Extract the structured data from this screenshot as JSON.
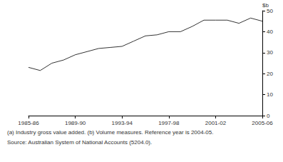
{
  "chart_data": {
    "type": "line",
    "y_label": "$b",
    "categories": [
      "1985-86",
      null,
      null,
      null,
      "1989-90",
      null,
      null,
      null,
      "1993-94",
      null,
      null,
      null,
      "1997-98",
      null,
      null,
      null,
      "2001-02",
      null,
      null,
      null,
      "2005-06"
    ],
    "values": [
      23,
      21.5,
      25,
      26.5,
      29,
      30.5,
      32,
      32.5,
      33,
      35.5,
      38,
      38.5,
      40,
      40,
      42.5,
      45.5,
      45.5,
      45.5,
      44,
      46.5,
      45
    ],
    "color": "#000000",
    "ylim": [
      0,
      50
    ],
    "yticks": [
      0,
      10,
      20,
      30,
      40,
      50
    ],
    "grid": false,
    "annotations": [
      "(a) Industry gross value added. (b) Volume measures. Reference year is 2004-05.",
      "Source: Australian System of National Accounts (5204.0)."
    ]
  }
}
